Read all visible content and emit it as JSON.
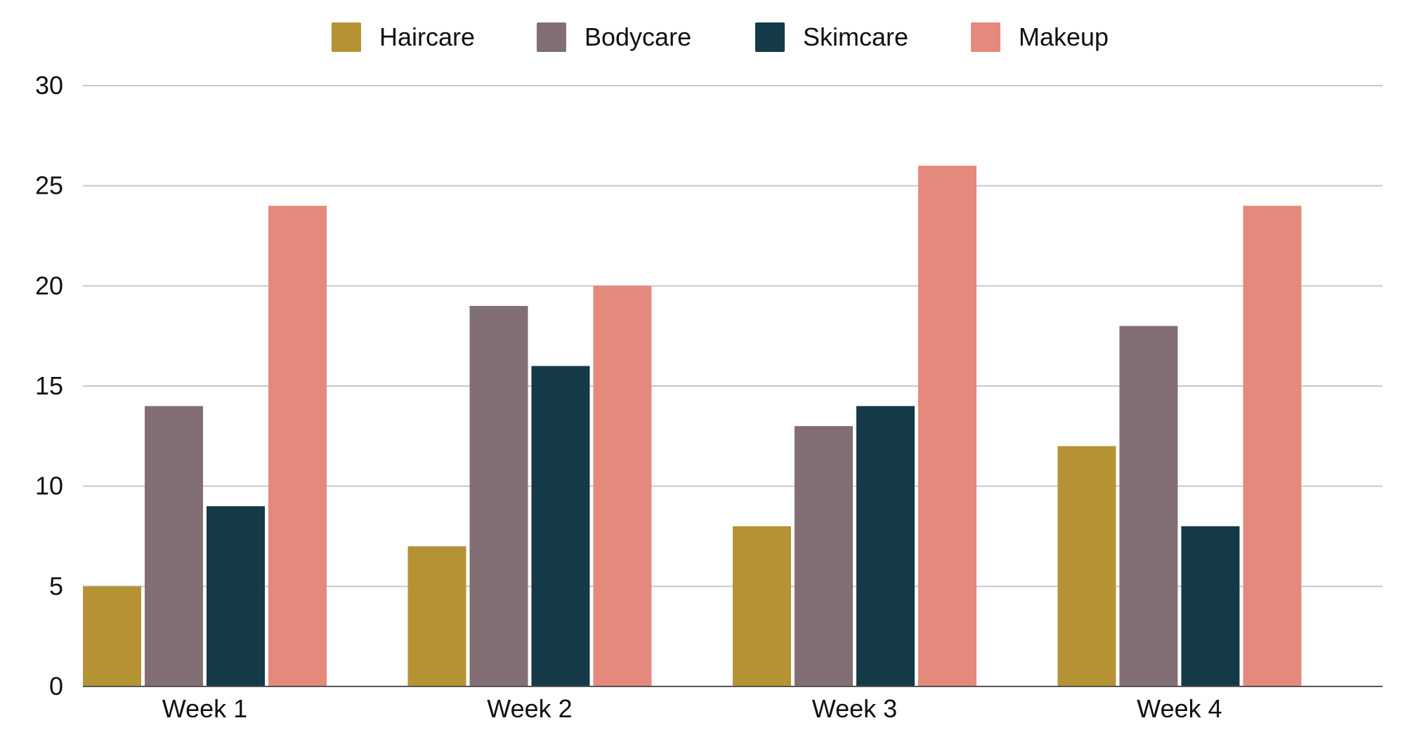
{
  "chart_data": {
    "type": "bar",
    "title": "",
    "xlabel": "",
    "ylabel": "",
    "categories": [
      "Week 1",
      "Week 2",
      "Week 3",
      "Week 4"
    ],
    "series": [
      {
        "name": "Haircare",
        "color": "#B59234",
        "values": [
          5,
          7,
          8,
          12
        ]
      },
      {
        "name": "Bodycare",
        "color": "#826F73",
        "values": [
          14,
          19,
          13,
          18
        ]
      },
      {
        "name": "Skimcare",
        "color": "#143A48",
        "values": [
          9,
          16,
          14,
          8
        ]
      },
      {
        "name": "Makeup",
        "color": "#E5897C",
        "values": [
          24,
          20,
          26,
          24
        ]
      }
    ],
    "ylim": [
      0,
      30
    ],
    "yticks": [
      0,
      5,
      10,
      15,
      20,
      25,
      30
    ],
    "grid": true,
    "legend_position": "top-center"
  }
}
